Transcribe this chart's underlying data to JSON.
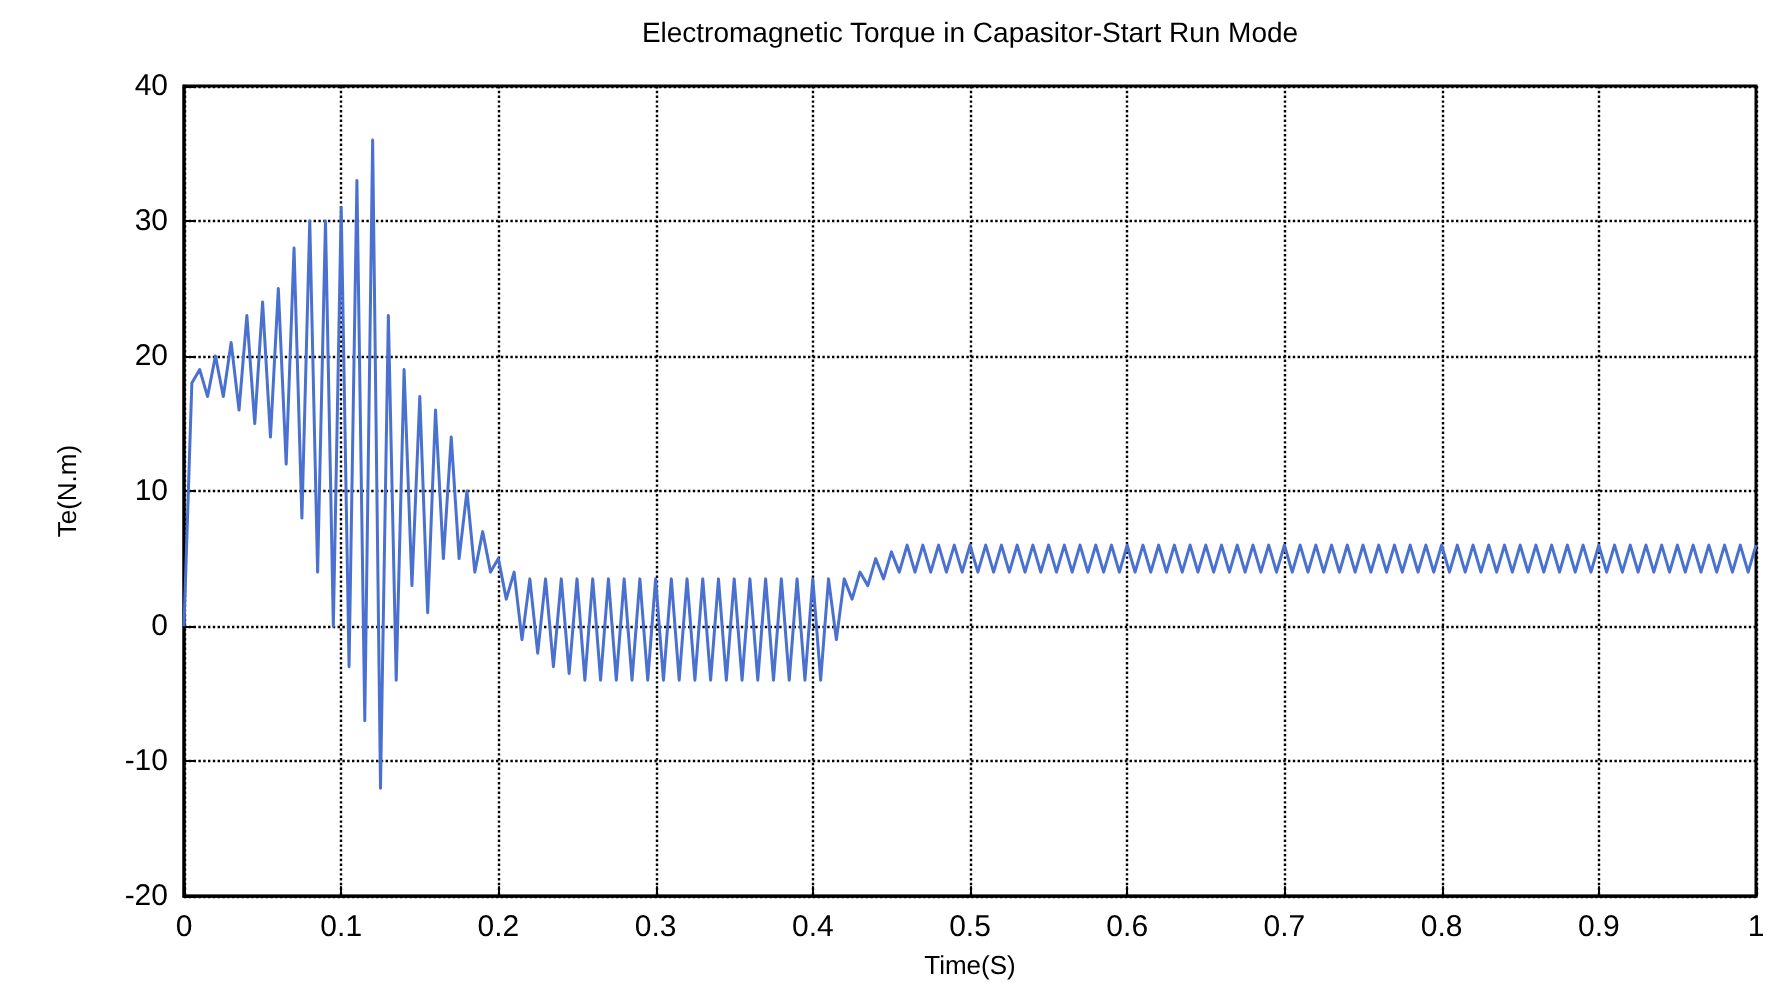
{
  "chart_data": {
    "type": "line",
    "title": "Electromagnetic Torque in Capasitor-Start Run Mode",
    "xlabel": "Time(S)",
    "ylabel": "Te(N.m)",
    "x": [
      0,
      0.005,
      0.01,
      0.015,
      0.02,
      0.025,
      0.03,
      0.035,
      0.04,
      0.045,
      0.05,
      0.055,
      0.06,
      0.065,
      0.07,
      0.075,
      0.08,
      0.085,
      0.09,
      0.095,
      0.1,
      0.105,
      0.11,
      0.115,
      0.12,
      0.125,
      0.13,
      0.135,
      0.14,
      0.145,
      0.15,
      0.155,
      0.16,
      0.165,
      0.17,
      0.175,
      0.18,
      0.185,
      0.19,
      0.195,
      0.2,
      0.205,
      0.21,
      0.215,
      0.22,
      0.225,
      0.23,
      0.235,
      0.24,
      0.245,
      0.25,
      0.255,
      0.26,
      0.265,
      0.27,
      0.275,
      0.28,
      0.285,
      0.29,
      0.295,
      0.3,
      0.305,
      0.31,
      0.315,
      0.32,
      0.325,
      0.33,
      0.335,
      0.34,
      0.345,
      0.35,
      0.355,
      0.36,
      0.365,
      0.37,
      0.375,
      0.38,
      0.385,
      0.39,
      0.395,
      0.4,
      0.405,
      0.41,
      0.415,
      0.42,
      0.425,
      0.43,
      0.435,
      0.44,
      0.445,
      0.45,
      0.455,
      0.46,
      0.465,
      0.47,
      0.475,
      0.48,
      0.485,
      0.49,
      0.495,
      0.5,
      0.505,
      0.51,
      0.515,
      0.52,
      0.525,
      0.53,
      0.535,
      0.54,
      0.545,
      0.55,
      0.555,
      0.56,
      0.565,
      0.57,
      0.575,
      0.58,
      0.585,
      0.59,
      0.595,
      0.6,
      0.605,
      0.61,
      0.615,
      0.62,
      0.625,
      0.63,
      0.635,
      0.64,
      0.645,
      0.65,
      0.655,
      0.66,
      0.665,
      0.67,
      0.675,
      0.68,
      0.685,
      0.69,
      0.695,
      0.7,
      0.705,
      0.71,
      0.715,
      0.72,
      0.725,
      0.73,
      0.735,
      0.74,
      0.745,
      0.75,
      0.755,
      0.76,
      0.765,
      0.77,
      0.775,
      0.78,
      0.785,
      0.79,
      0.795,
      0.8,
      0.805,
      0.81,
      0.815,
      0.82,
      0.825,
      0.83,
      0.835,
      0.84,
      0.845,
      0.85,
      0.855,
      0.86,
      0.865,
      0.87,
      0.875,
      0.88,
      0.885,
      0.89,
      0.895,
      0.9,
      0.905,
      0.91,
      0.915,
      0.92,
      0.925,
      0.93,
      0.935,
      0.94,
      0.945,
      0.95,
      0.955,
      0.96,
      0.965,
      0.97,
      0.975,
      0.98,
      0.985,
      0.99,
      0.995,
      1
    ],
    "series": [
      {
        "color": "#4a70d0",
        "values": [
          0,
          18,
          19,
          17,
          20,
          17,
          21,
          16,
          23,
          15,
          24,
          14,
          25,
          12,
          28,
          8,
          30,
          4,
          30,
          0,
          31,
          -3,
          33,
          -7,
          36,
          -12,
          23,
          -4,
          19,
          3,
          17,
          1,
          16,
          5,
          14,
          5,
          10,
          4,
          7,
          4,
          5,
          2,
          4,
          -1,
          3.5,
          -2,
          3.5,
          -3,
          3.5,
          -3.5,
          3.5,
          -4,
          3.5,
          -4,
          3.5,
          -4,
          3.5,
          -4,
          3.5,
          -4,
          3.5,
          -4,
          3.5,
          -4,
          3.5,
          -4,
          3.5,
          -4,
          3.5,
          -4,
          3.5,
          -4,
          3.5,
          -4,
          3.5,
          -4,
          3.5,
          -4,
          3.5,
          -4,
          3.5,
          -4,
          3.5,
          -1,
          3.5,
          2,
          4,
          3,
          5,
          3.5,
          5.5,
          4,
          6,
          4,
          6,
          4,
          6,
          4,
          6,
          4,
          6,
          4,
          6,
          4,
          6,
          4,
          6,
          4,
          6,
          4,
          6,
          4,
          6,
          4,
          6,
          4,
          6,
          4,
          6,
          4,
          6,
          4,
          6,
          4,
          6,
          4,
          6,
          4,
          6,
          4,
          6,
          4,
          6,
          4,
          6,
          4,
          6,
          4,
          6,
          4,
          6,
          4,
          6,
          4,
          6,
          4,
          6,
          4,
          6,
          4,
          6,
          4,
          6,
          4,
          6,
          4,
          6,
          4,
          6,
          4,
          6,
          4,
          6,
          4,
          6,
          4,
          6,
          4,
          6,
          4,
          6,
          4,
          6,
          4,
          6,
          4,
          6,
          4,
          6,
          4,
          6,
          4,
          6,
          4,
          6,
          4,
          6,
          4,
          6,
          4,
          6,
          4,
          6,
          4,
          6,
          4,
          6,
          4,
          6,
          4,
          6
        ]
      }
    ],
    "xlim": [
      0,
      1
    ],
    "xticks": [
      0,
      0.1,
      0.2,
      0.3,
      0.4,
      0.5,
      0.6,
      0.7,
      0.8,
      0.9,
      1
    ],
    "ylim": [
      -20,
      40
    ],
    "yticks": [
      -20,
      -10,
      0,
      10,
      20,
      30,
      40
    ],
    "grid": true,
    "marker": "none",
    "line_style": "solid"
  }
}
